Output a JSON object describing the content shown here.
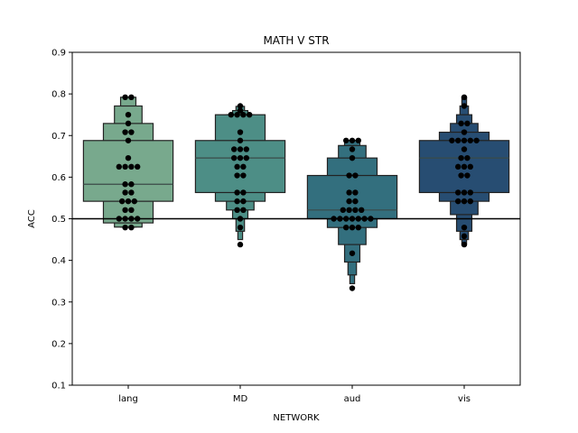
{
  "chart_data": {
    "type": "boxen",
    "title": "MATH V STR",
    "xlabel": "NETWORK",
    "ylabel": "ACC",
    "ylim": [
      0.1,
      0.9
    ],
    "yticks": [
      "0.1",
      "0.2",
      "0.3",
      "0.4",
      "0.5",
      "0.6",
      "0.7",
      "0.8",
      "0.9"
    ],
    "reference_line": 0.5,
    "categories": [
      "lang",
      "MD",
      "aud",
      "vis"
    ],
    "series": [
      {
        "category": "lang",
        "color": "#78a98d",
        "median": 0.583,
        "boxes": [
          [
            0.542,
            0.688
          ],
          [
            0.49,
            0.729
          ],
          [
            0.48,
            0.771
          ],
          [
            0.48,
            0.792
          ]
        ],
        "points": [
          0.792,
          0.792,
          0.75,
          0.729,
          0.708,
          0.708,
          0.688,
          0.646,
          0.625,
          0.625,
          0.625,
          0.625,
          0.583,
          0.583,
          0.563,
          0.563,
          0.542,
          0.542,
          0.542,
          0.521,
          0.521,
          0.5,
          0.5,
          0.5,
          0.5,
          0.479,
          0.479
        ]
      },
      {
        "category": "MD",
        "color": "#4d8e86",
        "median": 0.646,
        "boxes": [
          [
            0.563,
            0.688
          ],
          [
            0.542,
            0.75
          ],
          [
            0.521,
            0.75
          ],
          [
            0.5,
            0.76
          ],
          [
            0.47,
            0.77
          ],
          [
            0.45,
            0.771
          ]
        ],
        "points": [
          0.771,
          0.76,
          0.75,
          0.75,
          0.75,
          0.75,
          0.708,
          0.688,
          0.667,
          0.667,
          0.667,
          0.646,
          0.646,
          0.646,
          0.625,
          0.625,
          0.604,
          0.604,
          0.563,
          0.563,
          0.542,
          0.542,
          0.521,
          0.521,
          0.5,
          0.479,
          0.438
        ]
      },
      {
        "category": "aud",
        "color": "#336f7e",
        "median": 0.521,
        "boxes": [
          [
            0.5,
            0.604
          ],
          [
            0.479,
            0.646
          ],
          [
            0.438,
            0.676
          ],
          [
            0.396,
            0.688
          ],
          [
            0.365,
            0.688
          ],
          [
            0.344,
            0.688
          ]
        ],
        "points": [
          0.688,
          0.688,
          0.688,
          0.667,
          0.646,
          0.604,
          0.604,
          0.563,
          0.563,
          0.542,
          0.542,
          0.521,
          0.521,
          0.521,
          0.521,
          0.5,
          0.5,
          0.5,
          0.5,
          0.5,
          0.5,
          0.5,
          0.479,
          0.479,
          0.479,
          0.417,
          0.333
        ]
      },
      {
        "category": "vis",
        "color": "#274d72",
        "median": 0.646,
        "boxes": [
          [
            0.563,
            0.688
          ],
          [
            0.542,
            0.708
          ],
          [
            0.51,
            0.729
          ],
          [
            0.47,
            0.75
          ],
          [
            0.45,
            0.771
          ],
          [
            0.44,
            0.792
          ]
        ],
        "points": [
          0.792,
          0.771,
          0.729,
          0.729,
          0.708,
          0.688,
          0.688,
          0.688,
          0.688,
          0.688,
          0.667,
          0.646,
          0.646,
          0.625,
          0.625,
          0.625,
          0.604,
          0.604,
          0.563,
          0.563,
          0.563,
          0.542,
          0.542,
          0.542,
          0.479,
          0.458,
          0.438
        ]
      }
    ]
  }
}
